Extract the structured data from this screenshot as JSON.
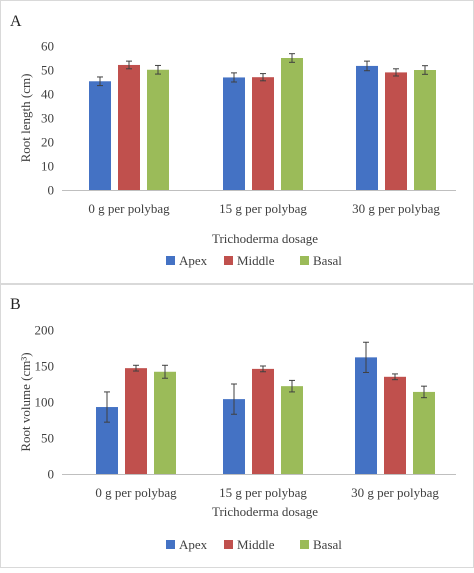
{
  "colors": {
    "apex": "#4472C4",
    "middle": "#C0504D",
    "basal": "#9BBB59",
    "axis": "#bfbfbf",
    "errorbar": "#404040"
  },
  "chart_data": [
    {
      "type": "bar",
      "panel": "A",
      "categories": [
        "0 g per polybag",
        "15 g per polybag",
        "30 g per polybag"
      ],
      "series": [
        {
          "name": "Apex",
          "values": [
            45.3,
            46.9,
            51.7
          ],
          "error": [
            1.8,
            1.9,
            2.0
          ]
        },
        {
          "name": "Middle",
          "values": [
            52.1,
            47.0,
            49.0
          ],
          "error": [
            1.6,
            1.5,
            1.5
          ]
        },
        {
          "name": "Basal",
          "values": [
            50.1,
            55.0,
            50.0
          ],
          "error": [
            1.8,
            1.8,
            1.8
          ]
        }
      ],
      "xlabel": "Trichoderma dosage",
      "ylabel": "Root length (cm)",
      "ylim": [
        0,
        60
      ],
      "yticks": [
        "0",
        "10",
        "20",
        "30",
        "40",
        "50",
        "60"
      ],
      "legend": "bottom",
      "grid": false
    },
    {
      "type": "bar",
      "panel": "B",
      "categories": [
        "0 g per polybag",
        "15 g per polybag",
        "30 g per polybag"
      ],
      "series": [
        {
          "name": "Apex",
          "values": [
            93,
            104,
            162
          ],
          "error": [
            21,
            21,
            21
          ]
        },
        {
          "name": "Middle",
          "values": [
            147,
            146,
            135
          ],
          "error": [
            4,
            4,
            4
          ]
        },
        {
          "name": "Basal",
          "values": [
            142,
            122,
            114
          ],
          "error": [
            9,
            8,
            8
          ]
        }
      ],
      "xlabel": "Trichoderma dosage",
      "ylabel": "Root volume (cm³)",
      "ylim": [
        0,
        200
      ],
      "yticks": [
        "0",
        "50",
        "100",
        "150",
        "200"
      ],
      "legend": "bottom",
      "grid": false
    }
  ]
}
